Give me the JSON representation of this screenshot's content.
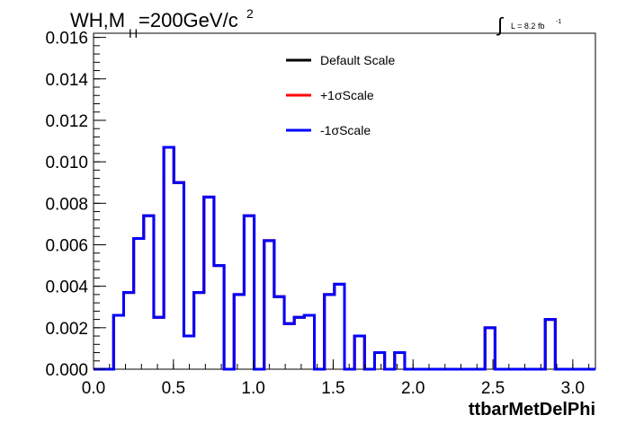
{
  "chart_data": {
    "type": "line",
    "title": {
      "main": "WH,M",
      "sub": "H",
      "rest": "=200GeV/c",
      "sup": "2"
    },
    "lumi": {
      "integral": "∫",
      "text": "L = 8.2 fb",
      "sup": "-1"
    },
    "xlabel": "ttbarMetDelPhi",
    "ylabel": "",
    "xlim": [
      0,
      3.1416
    ],
    "ylim": [
      0,
      0.0162
    ],
    "x_ticks": [
      "0.0",
      "0.5",
      "1.0",
      "1.5",
      "2.0",
      "2.5",
      "3.0"
    ],
    "x_tick_values": [
      0,
      0.5,
      1.0,
      1.5,
      2.0,
      2.5,
      3.0
    ],
    "y_ticks": [
      "0.000",
      "0.002",
      "0.004",
      "0.006",
      "0.008",
      "0.010",
      "0.012",
      "0.014",
      "0.016"
    ],
    "y_tick_values": [
      0,
      0.002,
      0.004,
      0.006,
      0.008,
      0.01,
      0.012,
      0.014,
      0.016
    ],
    "bins": 50,
    "series": [
      {
        "name": "Default Scale",
        "color": "#000000",
        "values": [
          0,
          0,
          0.0026,
          0.0037,
          0.0063,
          0.0074,
          0.0025,
          0.0107,
          0.009,
          0.0016,
          0.0037,
          0.0083,
          0.005,
          0,
          0.0036,
          0.0074,
          0,
          0.0062,
          0.0035,
          0.0022,
          0.0025,
          0.0026,
          0,
          0.0036,
          0.0041,
          0,
          0.0016,
          0,
          0.0008,
          0,
          0.0008,
          0,
          0,
          0,
          0,
          0,
          0,
          0,
          0,
          0.002,
          0,
          0,
          0,
          0,
          0,
          0.0024,
          0,
          0,
          0,
          0
        ]
      },
      {
        "name": "+1σScale",
        "color": "#ff0000",
        "values": [
          0,
          0,
          0.0026,
          0.0037,
          0.0063,
          0.0074,
          0.0025,
          0.0107,
          0.009,
          0.0016,
          0.0037,
          0.0083,
          0.005,
          0,
          0.0036,
          0.0074,
          0,
          0.0062,
          0.0035,
          0.0022,
          0.0025,
          0.0026,
          0,
          0.0036,
          0.0041,
          0,
          0.0016,
          0,
          0.0008,
          0,
          0.0008,
          0,
          0,
          0,
          0,
          0,
          0,
          0,
          0,
          0.002,
          0,
          0,
          0,
          0,
          0,
          0.0024,
          0,
          0,
          0,
          0
        ]
      },
      {
        "name": "-1σScale",
        "color": "#0000ff",
        "values": [
          0,
          0,
          0.0026,
          0.0037,
          0.0063,
          0.0074,
          0.0025,
          0.0107,
          0.009,
          0.0016,
          0.0037,
          0.0083,
          0.005,
          0,
          0.0036,
          0.0074,
          0,
          0.0062,
          0.0035,
          0.0022,
          0.0025,
          0.0026,
          0,
          0.0036,
          0.0041,
          0,
          0.0016,
          0,
          0.0008,
          0,
          0.0008,
          0,
          0,
          0,
          0,
          0,
          0,
          0,
          0,
          0.002,
          0,
          0,
          0,
          0,
          0,
          0.0024,
          0,
          0,
          0,
          0
        ]
      }
    ],
    "legend_position": "top-right",
    "grid": false
  }
}
